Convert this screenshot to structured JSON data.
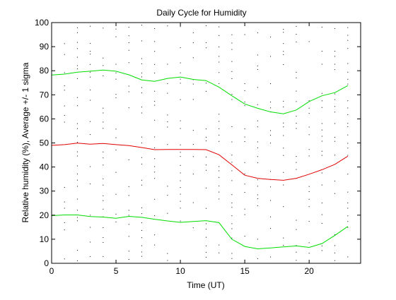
{
  "chart_data": {
    "type": "line",
    "title": "Daily Cycle for Humidity",
    "xlabel": "Time (UT)",
    "ylabel": "Relative humidity (%), Average +/- 1 sigma",
    "xlim": [
      0,
      24
    ],
    "ylim": [
      0,
      100
    ],
    "x_ticks": [
      0,
      5,
      10,
      15,
      20
    ],
    "y_ticks": [
      0,
      10,
      20,
      30,
      40,
      50,
      60,
      70,
      80,
      90,
      100
    ],
    "grid": false,
    "legend": "none",
    "x": [
      0,
      1,
      2,
      3,
      4,
      5,
      6,
      7,
      8,
      9,
      10,
      11,
      12,
      13,
      14,
      15,
      16,
      17,
      18,
      19,
      20,
      21,
      22,
      23
    ],
    "series": [
      {
        "color": "#00dd00",
        "values": [
          78.2,
          78.6,
          79.4,
          79.8,
          80.3,
          79.8,
          78.3,
          76.2,
          75.6,
          76.8,
          77.4,
          76.4,
          75.9,
          73.2,
          69.6,
          66.2,
          64.4,
          62.9,
          62.1,
          63.7,
          67.2,
          69.6,
          70.9,
          73.8
        ]
      },
      {
        "color": "#e00000",
        "values": [
          49.0,
          49.3,
          49.9,
          49.5,
          49.8,
          49.3,
          48.9,
          48.1,
          47.2,
          47.3,
          47.3,
          47.3,
          47.2,
          45.1,
          40.9,
          36.6,
          35.3,
          34.8,
          34.5,
          35.3,
          37.0,
          38.9,
          41.1,
          44.5
        ]
      },
      {
        "color": "#00dd00",
        "values": [
          19.8,
          20.1,
          20.1,
          19.4,
          19.2,
          18.7,
          19.5,
          19.1,
          18.3,
          17.6,
          17.0,
          17.4,
          17.7,
          16.9,
          10.0,
          7.0,
          6.0,
          6.4,
          6.8,
          7.2,
          6.6,
          8.2,
          11.6,
          15.3
        ]
      }
    ],
    "scatter_observations": {
      "color": "#000000",
      "description_levels": [
        2,
        5,
        8,
        11,
        14,
        17,
        20,
        23,
        26,
        29,
        32,
        35,
        38,
        41,
        44,
        47,
        50,
        53,
        56,
        59,
        62,
        65,
        68,
        71,
        74,
        77,
        80,
        83,
        86,
        89,
        92,
        95,
        98
      ]
    }
  }
}
